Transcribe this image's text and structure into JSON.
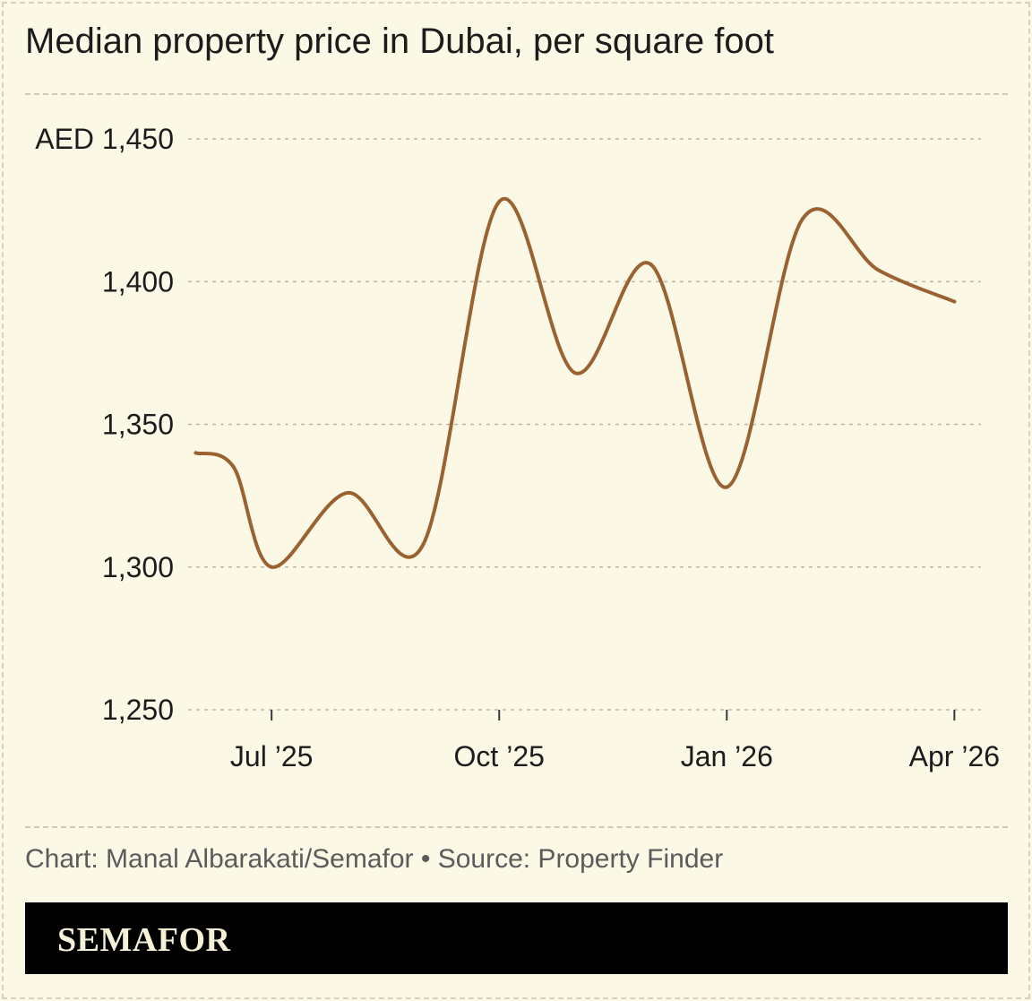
{
  "title": "Median property price in Dubai, per square foot",
  "credit": "Chart: Manal Albarakati/Semafor • Source: Property Finder",
  "brand": "SEMAFOR",
  "colors": {
    "background": "#fbf8e6",
    "line": "#9a6230",
    "grid": "#bdb8a3",
    "brand_bar": "#000000",
    "brand_text": "#f6f1d6"
  },
  "chart_data": {
    "type": "line",
    "title": "Median property price in Dubai, per square foot",
    "xlabel": "",
    "ylabel": "",
    "ylim": [
      1250,
      1450
    ],
    "y_ticks": [
      {
        "value": 1450,
        "label": "AED 1,450"
      },
      {
        "value": 1400,
        "label": "1,400"
      },
      {
        "value": 1350,
        "label": "1,350"
      },
      {
        "value": 1300,
        "label": "1,300"
      },
      {
        "value": 1250,
        "label": "1,250"
      }
    ],
    "x_ticks": [
      {
        "value": 1,
        "label": "Jul ’25"
      },
      {
        "value": 4,
        "label": "Oct ’25"
      },
      {
        "value": 7,
        "label": "Jan ’26"
      },
      {
        "value": 10,
        "label": "Apr ’26"
      }
    ],
    "xlim": [
      -0.1,
      10.35
    ],
    "grid": true,
    "legend": "none",
    "series": [
      {
        "points": [
          {
            "x": 0,
            "y": 1340
          },
          {
            "x": 0.5,
            "y": 1335
          },
          {
            "x": 1,
            "y": 1300
          },
          {
            "x": 2,
            "y": 1326
          },
          {
            "x": 3,
            "y": 1308
          },
          {
            "x": 4,
            "y": 1428
          },
          {
            "x": 5,
            "y": 1368
          },
          {
            "x": 6,
            "y": 1406
          },
          {
            "x": 7,
            "y": 1328
          },
          {
            "x": 8,
            "y": 1422
          },
          {
            "x": 9,
            "y": 1404
          },
          {
            "x": 10,
            "y": 1393
          }
        ]
      }
    ]
  }
}
